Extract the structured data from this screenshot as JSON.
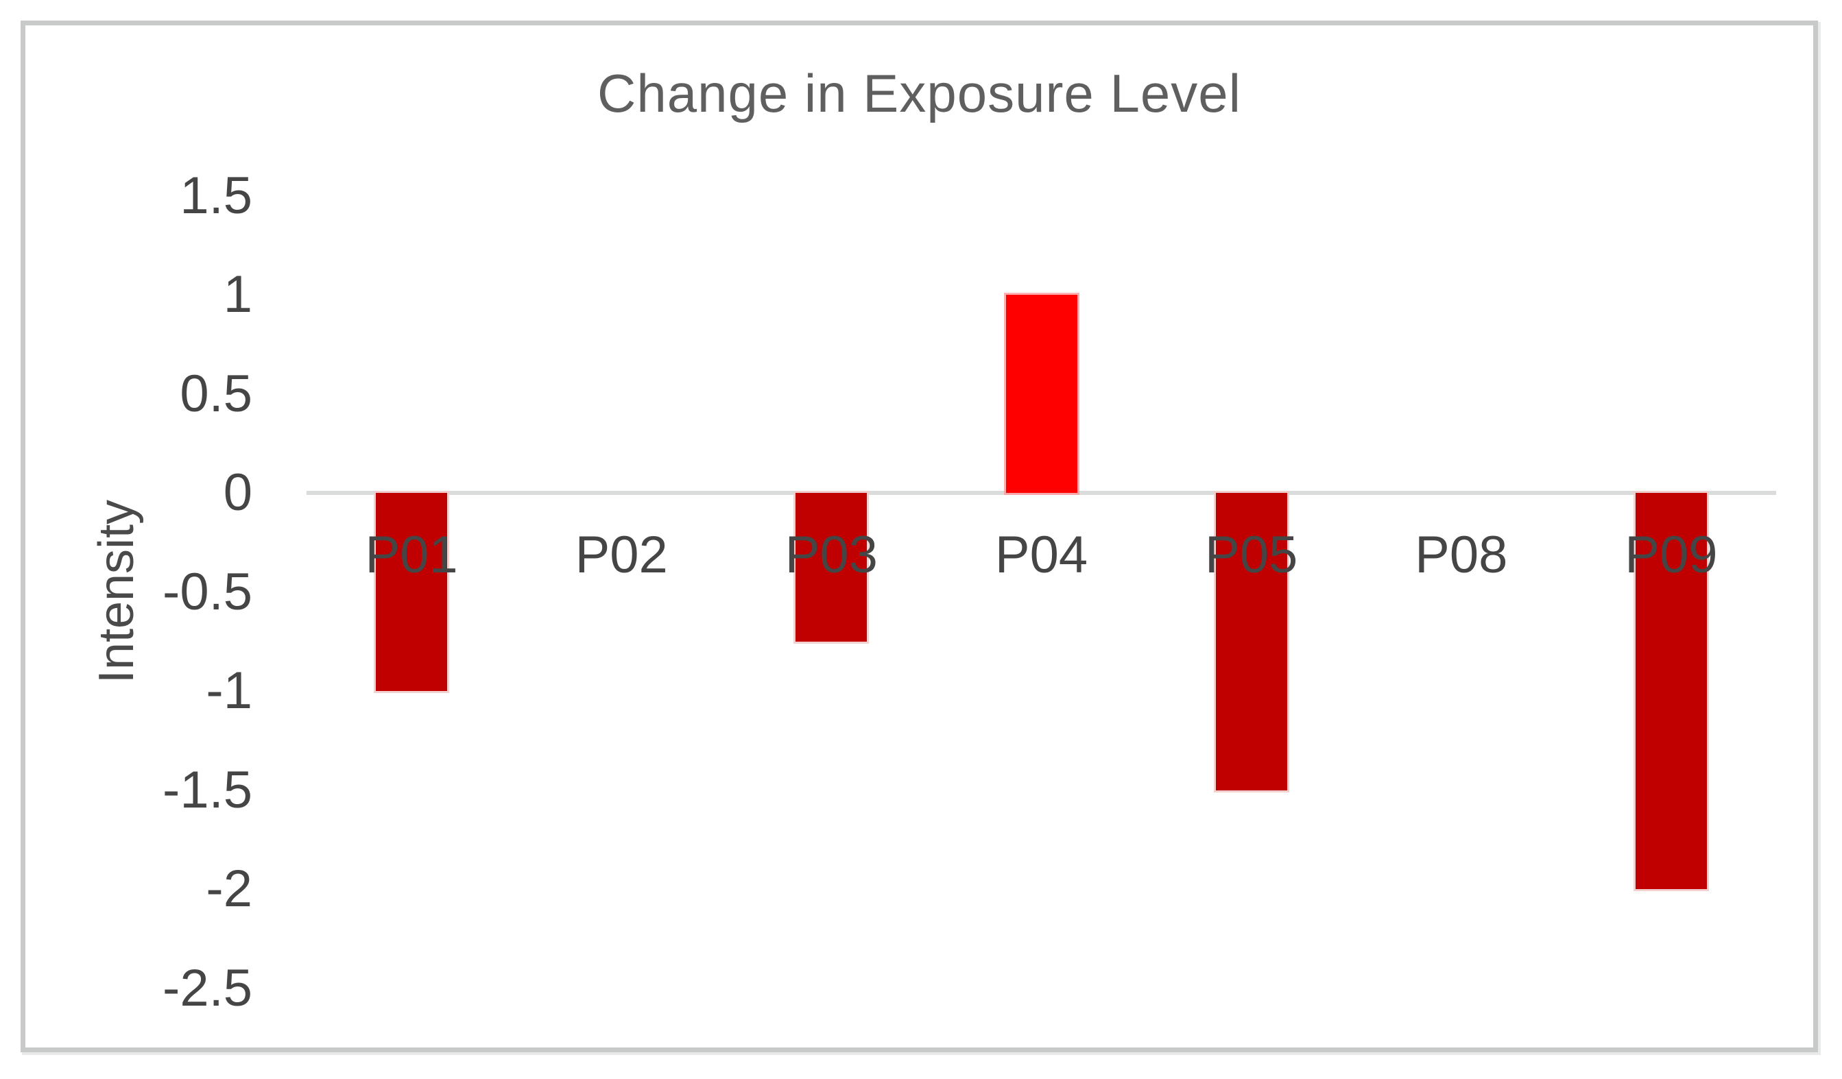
{
  "chart": {
    "title": "Change in Exposure Level",
    "y_axis_title": "Intensity"
  },
  "chart_data": {
    "type": "bar",
    "title": "Change in Exposure Level",
    "xlabel": "",
    "ylabel": "Intensity",
    "categories": [
      "P01",
      "P02",
      "P03",
      "P04",
      "P05",
      "P08",
      "P09"
    ],
    "values": [
      -1,
      0,
      -0.75,
      1,
      -1.5,
      0,
      -2
    ],
    "ytick_labels": [
      "1.5",
      "1",
      "0.5",
      "0",
      "-0.5",
      "-1",
      "-1.5",
      "-2",
      "-2.5"
    ],
    "ylim": [
      -2.5,
      1.5
    ],
    "grid": false,
    "legend": null,
    "bar_color_positive": "#ff0000",
    "bar_color_negative": "#c00000"
  },
  "colors": {
    "axis_line": "#d9dcdb",
    "frame_border": "#c7cac9",
    "title_text": "#5f5f5f",
    "tick_text": "#454545",
    "background": "#ffffff"
  }
}
